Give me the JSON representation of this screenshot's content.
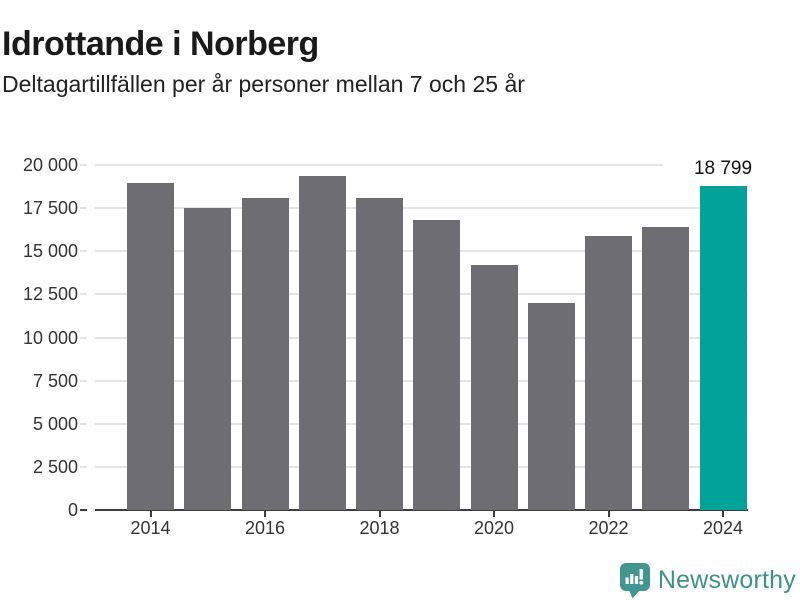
{
  "chart_data": {
    "type": "bar",
    "title": "Idrottande i Norberg",
    "subtitle": "Deltagartillfällen per år personer mellan 7 och 25 år",
    "categories": [
      "2014",
      "2015",
      "2016",
      "2017",
      "2018",
      "2019",
      "2020",
      "2021",
      "2022",
      "2023",
      "2024"
    ],
    "values": [
      18950,
      17530,
      18100,
      19350,
      18100,
      16840,
      14180,
      11980,
      15900,
      16400,
      18799
    ],
    "highlight": {
      "category": "2024",
      "value": 18799,
      "label": "18 799"
    },
    "ylim": [
      0,
      20000
    ],
    "y_ticks": [
      {
        "value": 0,
        "label": "0"
      },
      {
        "value": 2500,
        "label": "2 500"
      },
      {
        "value": 5000,
        "label": "5 000"
      },
      {
        "value": 7500,
        "label": "7 500"
      },
      {
        "value": 10000,
        "label": "10 000"
      },
      {
        "value": 12500,
        "label": "12 500"
      },
      {
        "value": 15000,
        "label": "15 000"
      },
      {
        "value": 17500,
        "label": "17 500"
      },
      {
        "value": 20000,
        "label": "20 000"
      }
    ],
    "x_tick_labels": [
      "2014",
      "2016",
      "2018",
      "2020",
      "2022",
      "2024"
    ],
    "grid": true,
    "legend": "none",
    "colors": {
      "bar": "#6d6d73",
      "highlight": "#00a29a",
      "grid": "#e4e4e6",
      "axis": "#3e3e40",
      "tick_label": "#333333",
      "value_label": "#111111"
    }
  },
  "footer": {
    "brand": "Newsworthy",
    "brand_color": "#3b928b",
    "logo_icon": "newsworthy-bar-chart-speech-bubble-icon",
    "logo_color": "#42968f"
  }
}
